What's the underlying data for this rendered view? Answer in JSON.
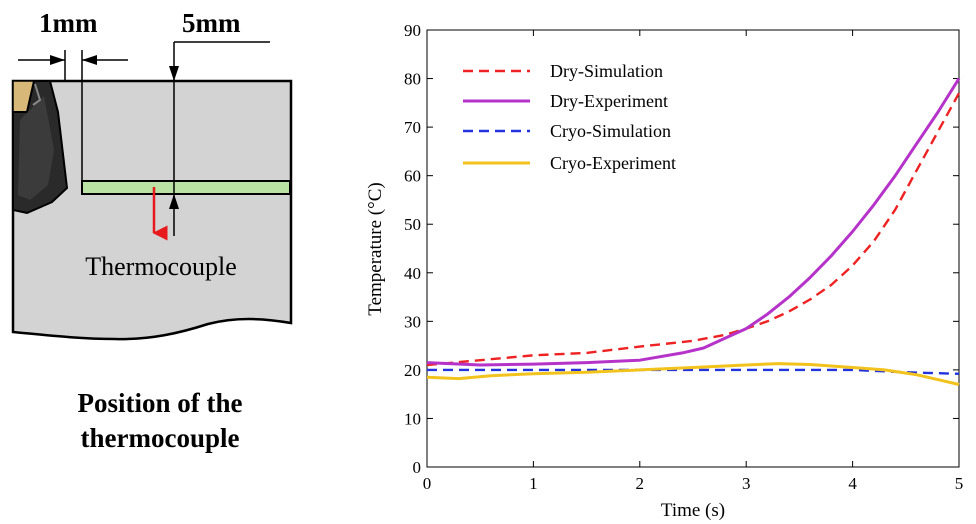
{
  "diagram": {
    "dim_1mm": "1mm",
    "dim_5mm": "5mm",
    "thermocouple_label": "Thermocouple",
    "caption_line1": "Position of the",
    "caption_line2": "thermocouple",
    "colors": {
      "workpiece": "#d3d3d3",
      "tool_tip": "#d8b878",
      "tool_body": "#2a2a2a",
      "groove": "#b9e2a4",
      "arrow": "#e8191c"
    }
  },
  "chart_data": {
    "type": "line",
    "title": "",
    "xlabel": "Time (s)",
    "ylabel": "Temperature (°C)",
    "xlim": [
      0,
      5
    ],
    "ylim": [
      0,
      90
    ],
    "xticks": [
      0,
      1,
      2,
      3,
      4,
      5
    ],
    "yticks": [
      0,
      10,
      20,
      30,
      40,
      50,
      60,
      70,
      80,
      90
    ],
    "grid": false,
    "legend_position": "top-left",
    "series": [
      {
        "name": "Dry-Simulation",
        "style": "dashed",
        "color": "#ee2222",
        "x": [
          0,
          0.5,
          1,
          1.5,
          2,
          2.5,
          2.8,
          3,
          3.2,
          3.4,
          3.6,
          3.8,
          4,
          4.2,
          4.4,
          4.6,
          4.8,
          5
        ],
        "y": [
          21,
          22,
          23,
          23.5,
          24.8,
          26,
          27.2,
          28.5,
          30,
          32,
          34.5,
          37.5,
          41.5,
          46.5,
          53,
          61,
          69,
          77
        ]
      },
      {
        "name": "Dry-Experiment",
        "style": "solid",
        "color": "#b533c9",
        "x": [
          0,
          0.5,
          1,
          1.5,
          2,
          2.4,
          2.6,
          2.8,
          3,
          3.2,
          3.4,
          3.6,
          3.8,
          4,
          4.2,
          4.4,
          4.6,
          4.8,
          5
        ],
        "y": [
          21.5,
          21,
          21.2,
          21.5,
          22,
          23.5,
          24.5,
          26.5,
          28.5,
          31.5,
          35,
          39,
          43.5,
          48.5,
          54,
          60,
          66.5,
          73,
          80
        ]
      },
      {
        "name": "Cryo-Simulation",
        "style": "dashed",
        "color": "#2233dd",
        "x": [
          0,
          1,
          2,
          3,
          4,
          4.5,
          5
        ],
        "y": [
          20,
          20,
          20,
          20,
          20,
          19.5,
          19.2
        ]
      },
      {
        "name": "Cryo-Experiment",
        "style": "solid",
        "color": "#f2c21d",
        "x": [
          0,
          0.3,
          0.6,
          1,
          1.5,
          2,
          2.5,
          3,
          3.3,
          3.6,
          4,
          4.3,
          4.6,
          4.8,
          5
        ],
        "y": [
          18.5,
          18.2,
          18.8,
          19.2,
          19.5,
          20,
          20.5,
          21,
          21.3,
          21.1,
          20.5,
          20,
          19,
          18,
          17
        ]
      }
    ]
  }
}
